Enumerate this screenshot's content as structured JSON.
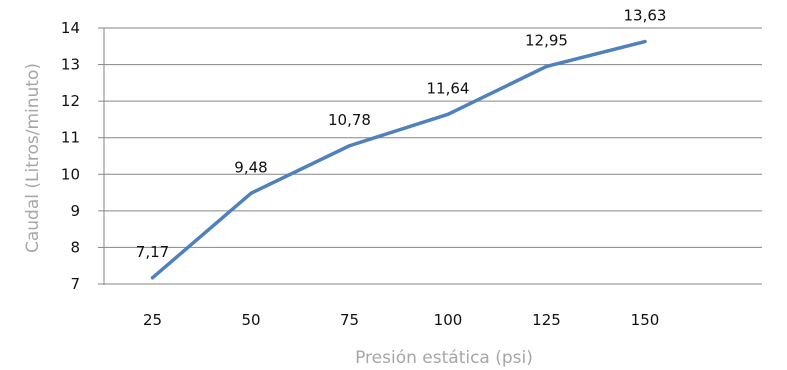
{
  "chart_data": {
    "type": "line",
    "title": "",
    "xlabel": "Presión estática (psi)",
    "ylabel": "Caudal (Litros/minuto)",
    "categories": [
      "25",
      "50",
      "75",
      "100",
      "125",
      "150"
    ],
    "series": [
      {
        "values": [
          7.17,
          9.48,
          10.78,
          11.64,
          12.95,
          13.63
        ],
        "data_labels": [
          "7,17",
          "9,48",
          "10,78",
          "11,64",
          "12,95",
          "13,63"
        ]
      }
    ],
    "ylim": [
      7,
      14
    ],
    "yticks": [
      "7",
      "8",
      "9",
      "10",
      "11",
      "12",
      "13",
      "14"
    ],
    "grid": true,
    "legend": "none",
    "colors": {
      "line": "#4f81bd",
      "grid": "#868686",
      "axis_title": "#a6a6a6",
      "text": "#111111"
    }
  }
}
